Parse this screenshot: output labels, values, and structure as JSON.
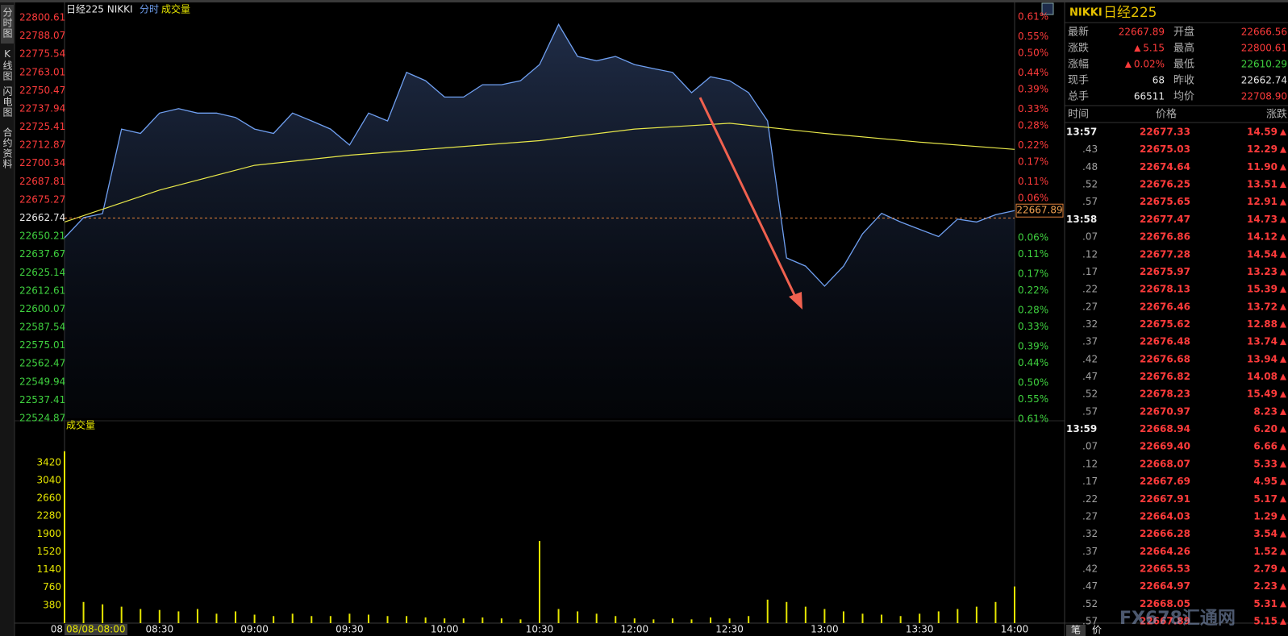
{
  "toolbar": {
    "tabs": [
      "分时图",
      "K线图",
      "闪电图",
      "合约资料"
    ]
  },
  "chart_data": {
    "type": "line",
    "title": "日经225 NIKKI",
    "volume_label": "成交量",
    "x": [
      0,
      6,
      12,
      18,
      24,
      30,
      36,
      42,
      48,
      54,
      60,
      66,
      72,
      78,
      84,
      90,
      96,
      102,
      108,
      114,
      120,
      126,
      132,
      138,
      144,
      150,
      156,
      162,
      168,
      174,
      180,
      186,
      192,
      198,
      204,
      210,
      216,
      222,
      228,
      234,
      240,
      246,
      252,
      258,
      264,
      270,
      276,
      282,
      288,
      294,
      300
    ],
    "xlim": [
      0,
      300
    ],
    "xticks": [
      {
        "value": 0,
        "label": "08"
      },
      {
        "value": 30,
        "label": "08:30"
      },
      {
        "value": 60,
        "label": "09:00"
      },
      {
        "value": 90,
        "label": "09:30"
      },
      {
        "value": 120,
        "label": "10:00"
      },
      {
        "value": 150,
        "label": "10:30"
      },
      {
        "value": 180,
        "label": "12:00"
      },
      {
        "value": 210,
        "label": "12:30"
      },
      {
        "value": 240,
        "label": "13:00"
      },
      {
        "value": 270,
        "label": "13:30"
      },
      {
        "value": 300,
        "label": "14:00"
      }
    ],
    "cursor_label": "08/08-08:00",
    "ylim": [
      22524.87,
      22800.61
    ],
    "yticks": [
      22800.61,
      22788.07,
      22775.54,
      22763.01,
      22750.47,
      22737.94,
      22725.41,
      22712.87,
      22700.34,
      22687.81,
      22675.27,
      22662.74,
      22650.21,
      22637.67,
      22625.14,
      22612.61,
      22600.07,
      22587.54,
      22575.01,
      22562.47,
      22549.94,
      22537.41,
      22524.87
    ],
    "y2lim": [
      -0.608,
      0.608
    ],
    "y2ticks": [
      {
        "value": 0.61,
        "label": "0.61%"
      },
      {
        "value": 0.55,
        "label": "0.55%"
      },
      {
        "value": 0.5,
        "label": "0.50%"
      },
      {
        "value": 0.44,
        "label": "0.44%"
      },
      {
        "value": 0.39,
        "label": "0.39%"
      },
      {
        "value": 0.33,
        "label": "0.33%"
      },
      {
        "value": 0.28,
        "label": "0.28%"
      },
      {
        "value": 0.22,
        "label": "0.22%"
      },
      {
        "value": 0.17,
        "label": "0.17%"
      },
      {
        "value": 0.11,
        "label": "0.11%"
      },
      {
        "value": 0.06,
        "label": "0.06%"
      },
      {
        "value": -0.06,
        "label": "0.06%"
      },
      {
        "value": -0.11,
        "label": "0.11%"
      },
      {
        "value": -0.17,
        "label": "0.17%"
      },
      {
        "value": -0.22,
        "label": "0.22%"
      },
      {
        "value": -0.28,
        "label": "0.28%"
      },
      {
        "value": -0.33,
        "label": "0.33%"
      },
      {
        "value": -0.39,
        "label": "0.39%"
      },
      {
        "value": -0.44,
        "label": "0.44%"
      },
      {
        "value": -0.5,
        "label": "0.50%"
      },
      {
        "value": -0.55,
        "label": "0.55%"
      },
      {
        "value": -0.61,
        "label": "0.61%"
      }
    ],
    "prev_close": 22662.74,
    "last": 22667.89,
    "last_label": "22667.89",
    "grid": false,
    "series": [
      {
        "name": "分时",
        "color": "#6f9ff0",
        "values": [
          22649.1,
          22663,
          22665.8,
          22724,
          22721,
          22735,
          22738,
          22735,
          22735,
          22732,
          22724,
          22721,
          22735,
          22729.6,
          22724,
          22713,
          22735,
          22729.6,
          22763,
          22757.3,
          22746,
          22746,
          22754.5,
          22754.5,
          22757.3,
          22768.4,
          22796,
          22774,
          22771,
          22774,
          22768.4,
          22765.6,
          22763,
          22749,
          22760,
          22757.3,
          22749,
          22729.6,
          22635.3,
          22629.7,
          22615.9,
          22629.7,
          22651.9,
          22666,
          22660,
          22655,
          22650,
          22662,
          22660,
          22665,
          22667.89
        ]
      },
      {
        "color": "#e8e84a",
        "x": [
          0,
          30,
          60,
          90,
          120,
          150,
          180,
          210,
          240,
          270,
          300
        ],
        "values": [
          22660,
          22682,
          22699,
          22706,
          22711,
          22716,
          22724,
          22728,
          22721,
          22715,
          22710
        ]
      }
    ],
    "volume": {
      "title": "成交量",
      "color": "#e6e600",
      "ylim": [
        0,
        4000
      ],
      "yticks": [
        3420,
        3040,
        2660,
        2280,
        1900,
        1520,
        1140,
        760,
        380
      ],
      "values": [
        3660,
        450,
        400,
        350,
        300,
        280,
        250,
        300,
        200,
        250,
        180,
        150,
        200,
        150,
        150,
        200,
        180,
        150,
        150,
        120,
        100,
        100,
        120,
        100,
        80,
        1750,
        300,
        250,
        200,
        150,
        100,
        80,
        100,
        80,
        120,
        100,
        150,
        500,
        450,
        350,
        300,
        250,
        200,
        180,
        150,
        200,
        250,
        300,
        350,
        450,
        780
      ]
    }
  },
  "quote": {
    "symbol": "NIKKI",
    "name": "日经225",
    "rows": [
      [
        {
          "label": "最新",
          "value": "22667.89",
          "color": "#ff3b3b"
        },
        {
          "label": "开盘",
          "value": "22666.56",
          "color": "#ff3b3b"
        }
      ],
      [
        {
          "label": "涨跌",
          "value": "5.15",
          "color": "#ff3b3b",
          "arrow": true
        },
        {
          "label": "最高",
          "value": "22800.61",
          "color": "#ff3b3b"
        }
      ],
      [
        {
          "label": "涨幅",
          "value": "0.02%",
          "color": "#ff3b3b",
          "arrow": true
        },
        {
          "label": "最低",
          "value": "22610.29",
          "color": "#3fd13f"
        }
      ],
      [
        {
          "label": "现手",
          "value": "68",
          "color": "#e8e8e8"
        },
        {
          "label": "昨收",
          "value": "22662.74",
          "color": "#e8e8e8"
        }
      ],
      [
        {
          "label": "总手",
          "value": "66511",
          "color": "#e8e8e8"
        },
        {
          "label": "均价",
          "value": "22708.90",
          "color": "#ff3b3b"
        }
      ]
    ]
  },
  "ticks": {
    "header": [
      "时间",
      "价格",
      "涨跌"
    ],
    "rows": [
      [
        "13:57",
        "22677.33",
        "14.59"
      ],
      [
        ".43",
        "22675.03",
        "12.29"
      ],
      [
        ".48",
        "22674.64",
        "11.90"
      ],
      [
        ".52",
        "22676.25",
        "13.51"
      ],
      [
        ".57",
        "22675.65",
        "12.91"
      ],
      [
        "13:58",
        "22677.47",
        "14.73"
      ],
      [
        ".07",
        "22676.86",
        "14.12"
      ],
      [
        ".12",
        "22677.28",
        "14.54"
      ],
      [
        ".17",
        "22675.97",
        "13.23"
      ],
      [
        ".22",
        "22678.13",
        "15.39"
      ],
      [
        ".27",
        "22676.46",
        "13.72"
      ],
      [
        ".32",
        "22675.62",
        "12.88"
      ],
      [
        ".37",
        "22676.48",
        "13.74"
      ],
      [
        ".42",
        "22676.68",
        "13.94"
      ],
      [
        ".47",
        "22676.82",
        "14.08"
      ],
      [
        ".52",
        "22678.23",
        "15.49"
      ],
      [
        ".57",
        "22670.97",
        "8.23"
      ],
      [
        "13:59",
        "22668.94",
        "6.20"
      ],
      [
        ".07",
        "22669.40",
        "6.66"
      ],
      [
        ".12",
        "22668.07",
        "5.33"
      ],
      [
        ".17",
        "22667.69",
        "4.95"
      ],
      [
        ".22",
        "22667.91",
        "5.17"
      ],
      [
        ".27",
        "22664.03",
        "1.29"
      ],
      [
        ".32",
        "22666.28",
        "3.54"
      ],
      [
        ".37",
        "22664.26",
        "1.52"
      ],
      [
        ".42",
        "22665.53",
        "2.79"
      ],
      [
        ".47",
        "22664.97",
        "2.23"
      ],
      [
        ".52",
        "22668.05",
        "5.31"
      ],
      [
        ".57",
        "22667.89",
        "5.15"
      ]
    ],
    "tabs": [
      "笔",
      "价"
    ]
  },
  "watermark": "FX678汇通网"
}
